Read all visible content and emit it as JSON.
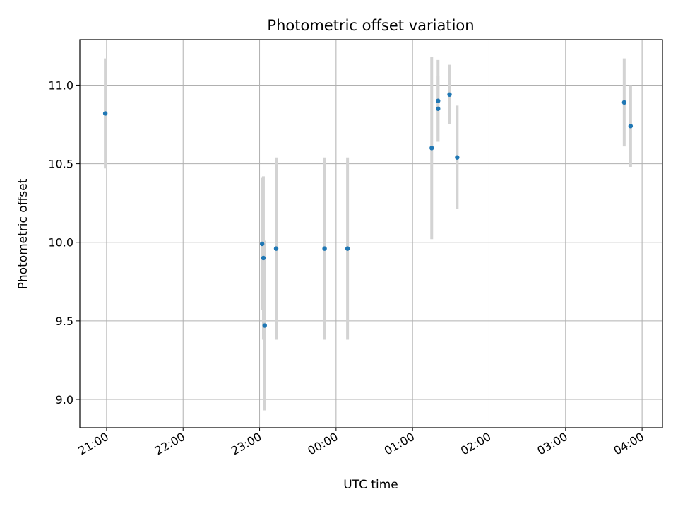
{
  "chart_data": {
    "type": "scatter",
    "title": "Photometric offset variation",
    "xlabel": "UTC time",
    "ylabel": "Photometric offset",
    "x_ticks": [
      "21:00",
      "22:00",
      "23:00",
      "00:00",
      "01:00",
      "02:00",
      "03:00",
      "04:00"
    ],
    "y_ticks": [
      "9.0",
      "9.5",
      "10.0",
      "10.5",
      "11.0"
    ],
    "xlim": [
      "20:39",
      "04:16"
    ],
    "ylim": [
      8.82,
      11.29
    ],
    "grid": true,
    "point_color": "#1f77b4",
    "errorbar_color": "#d3d3d3",
    "points": [
      {
        "x": "20:59",
        "y": 10.82,
        "err": 0.35
      },
      {
        "x": "23:02",
        "y": 9.99,
        "err": 0.42
      },
      {
        "x": "23:03",
        "y": 9.9,
        "err": 0.52
      },
      {
        "x": "23:04",
        "y": 9.47,
        "err": 0.54
      },
      {
        "x": "23:13",
        "y": 9.96,
        "err": 0.58
      },
      {
        "x": "23:51",
        "y": 9.96,
        "err": 0.58
      },
      {
        "x": "00:09",
        "y": 9.96,
        "err": 0.58
      },
      {
        "x": "01:15",
        "y": 10.6,
        "err": 0.58
      },
      {
        "x": "01:20",
        "y": 10.9,
        "err": 0.26
      },
      {
        "x": "01:20",
        "y": 10.85,
        "err": 0.21
      },
      {
        "x": "01:29",
        "y": 10.94,
        "err": 0.19
      },
      {
        "x": "01:35",
        "y": 10.54,
        "err": 0.33
      },
      {
        "x": "03:46",
        "y": 10.89,
        "err": 0.28
      },
      {
        "x": "03:51",
        "y": 10.74,
        "err": 0.26
      }
    ]
  }
}
